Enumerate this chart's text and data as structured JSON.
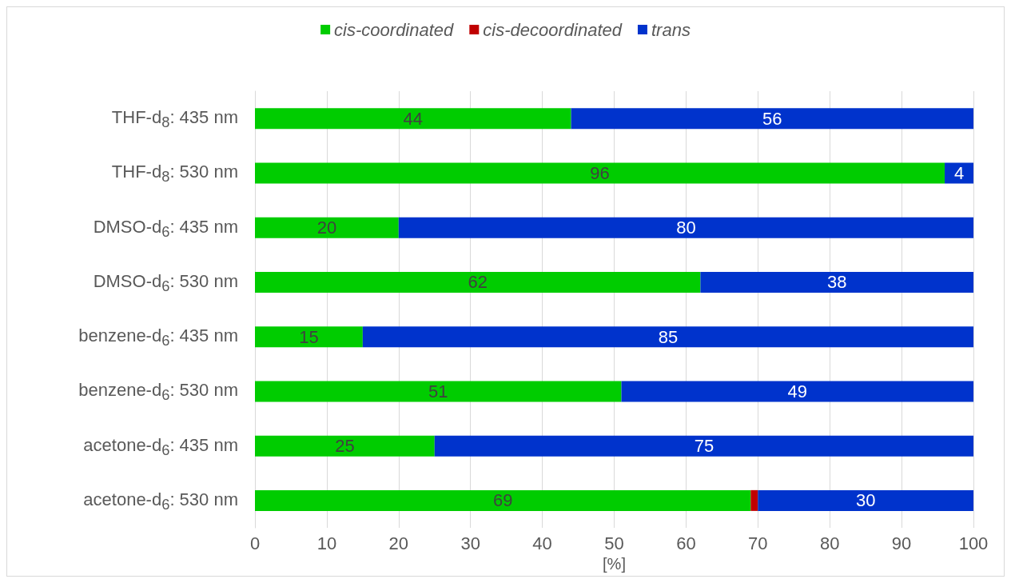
{
  "chart_data": {
    "type": "bar",
    "orientation": "horizontal",
    "stacked": true,
    "xlabel": "[%]",
    "categories": [
      "THF-d$_{8}$: 435 nm",
      "THF-d$_{8}$: 530 nm",
      "DMSO-d$_{6}$: 435 nm",
      "DMSO-d$_{6}$: 530 nm",
      "benzene-d$_{6}$: 435 nm",
      "benzene-d$_{6}$: 530 nm",
      "acetone-d$_{6}$: 435 nm",
      "acetone-d$_{6}$: 530 nm"
    ],
    "series": [
      {
        "name": "cis-coordinated",
        "color": "#00cc00",
        "values": [
          44,
          96,
          20,
          62,
          15,
          51,
          25,
          69
        ],
        "value_labels": [
          "44",
          "96",
          "20",
          "62",
          "15",
          "51",
          "25",
          "69"
        ]
      },
      {
        "name": "cis-decoordinated",
        "color": "#c00000",
        "values": [
          0,
          0,
          0,
          0,
          0,
          0,
          0,
          1
        ],
        "value_labels": [
          null,
          null,
          null,
          null,
          null,
          null,
          null,
          null
        ]
      },
      {
        "name": "trans",
        "color": "#0033cc",
        "values": [
          56,
          4,
          80,
          38,
          85,
          49,
          75,
          30
        ],
        "value_labels": [
          "56",
          "4",
          "80",
          "38",
          "85",
          "49",
          "75",
          "30"
        ]
      }
    ],
    "xlim": [
      0,
      100
    ],
    "xticks": [
      0,
      10,
      20,
      30,
      40,
      50,
      60,
      70,
      80,
      90,
      100
    ],
    "grid": "x",
    "legend": "top"
  }
}
